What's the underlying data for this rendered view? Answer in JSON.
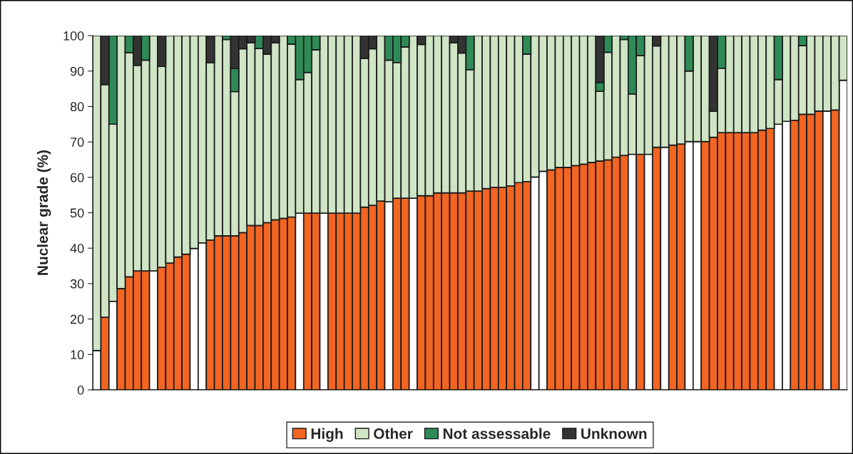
{
  "chart_data": {
    "type": "bar",
    "stacked": true,
    "ylabel": "Nuclear grade (%)",
    "ylim": [
      0,
      100
    ],
    "yticks": [
      0,
      10,
      20,
      30,
      40,
      50,
      60,
      70,
      80,
      90,
      100
    ],
    "legend": "bottom",
    "categories": [
      null,
      null,
      null,
      null,
      null,
      null,
      null,
      null,
      null,
      null,
      null,
      null,
      null,
      null,
      null,
      null,
      null,
      null,
      null,
      null,
      null,
      null,
      null,
      null,
      null,
      null,
      null,
      null,
      null,
      null,
      null,
      null,
      null,
      null,
      null,
      null,
      null,
      null,
      null,
      null,
      null,
      null,
      null,
      null,
      null,
      null,
      null,
      null,
      null,
      null,
      null,
      null,
      null,
      null,
      null,
      null,
      null,
      null,
      null,
      null,
      null,
      null,
      null,
      null,
      null,
      null,
      null,
      null,
      null,
      null,
      null,
      null,
      null,
      null,
      null,
      null,
      null,
      null,
      null,
      null,
      null,
      null,
      null,
      null,
      null,
      null,
      null,
      null,
      null,
      null,
      null,
      null,
      null
    ],
    "series": [
      {
        "name": "High",
        "color": "#f26522",
        "values": [
          11.1,
          20.5,
          25.0,
          28.6,
          31.9,
          33.6,
          33.6,
          33.6,
          34.6,
          35.8,
          37.5,
          38.3,
          39.9,
          41.5,
          42.3,
          43.5,
          43.5,
          43.5,
          44.4,
          46.4,
          46.4,
          47.2,
          48.0,
          48.4,
          48.8,
          49.9,
          49.9,
          49.9,
          49.9,
          49.9,
          49.9,
          49.9,
          49.9,
          51.6,
          52.1,
          53.3,
          53.1,
          54.1,
          54.1,
          54.1,
          54.8,
          54.8,
          55.6,
          55.6,
          55.6,
          55.6,
          56.1,
          56.1,
          56.8,
          57.2,
          57.2,
          57.6,
          58.5,
          58.8,
          60.1,
          61.7,
          62.1,
          62.8,
          62.8,
          63.3,
          63.7,
          64.2,
          64.6,
          64.9,
          65.7,
          66.2,
          66.5,
          66.5,
          66.5,
          68.5,
          68.5,
          69.1,
          69.4,
          70.1,
          70.1,
          70.1,
          71.3,
          72.6,
          72.6,
          72.6,
          72.6,
          72.6,
          73.3,
          73.8,
          75.0,
          75.8,
          76.1,
          77.8,
          77.8,
          78.7,
          78.7,
          79.0,
          87.4
        ],
        "colors": [
          "#ffffff",
          "#f26522",
          "#ffffff",
          "#f26522",
          "#f26522",
          "#f26522",
          "#f26522",
          "#ffffff",
          "#f26522",
          "#f26522",
          "#f26522",
          "#f26522",
          "#ffffff",
          "#ffffff",
          "#f26522",
          "#f26522",
          "#f26522",
          "#f26522",
          "#f26522",
          "#f26522",
          "#f26522",
          "#f26522",
          "#f26522",
          "#f26522",
          "#f26522",
          "#ffffff",
          "#f26522",
          "#f26522",
          "#ffffff",
          "#f26522",
          "#f26522",
          "#f26522",
          "#f26522",
          "#f26522",
          "#f26522",
          "#f26522",
          "#ffffff",
          "#f26522",
          "#f26522",
          "#ffffff",
          "#f26522",
          "#f26522",
          "#f26522",
          "#f26522",
          "#f26522",
          "#f26522",
          "#f26522",
          "#f26522",
          "#f26522",
          "#f26522",
          "#f26522",
          "#f26522",
          "#f26522",
          "#f26522",
          "#ffffff",
          "#ffffff",
          "#f26522",
          "#f26522",
          "#f26522",
          "#f26522",
          "#f26522",
          "#f26522",
          "#f26522",
          "#f26522",
          "#f26522",
          "#f26522",
          "#ffffff",
          "#f26522",
          "#ffffff",
          "#f26522",
          "#ffffff",
          "#f26522",
          "#f26522",
          "#ffffff",
          "#ffffff",
          "#f26522",
          "#f26522",
          "#f26522",
          "#f26522",
          "#f26522",
          "#f26522",
          "#f26522",
          "#f26522",
          "#f26522",
          "#ffffff",
          "#ffffff",
          "#f26522",
          "#f26522",
          "#f26522",
          "#f26522",
          "#ffffff",
          "#f26522",
          "#ffffff"
        ]
      },
      {
        "name": "Other",
        "color": "#cfe5c6",
        "values": [
          88.9,
          65.7,
          50.0,
          71.4,
          63.3,
          58.0,
          59.5,
          66.4,
          56.7,
          64.2,
          62.5,
          61.7,
          60.1,
          58.5,
          50.0,
          56.5,
          55.4,
          40.7,
          51.9,
          51.6,
          50.0,
          47.6,
          50.0,
          51.6,
          48.8,
          37.7,
          39.7,
          46.1,
          50.1,
          50.1,
          50.1,
          50.1,
          50.1,
          42.0,
          44.2,
          46.7,
          40.0,
          38.3,
          42.7,
          45.9,
          42.7,
          45.2,
          44.4,
          44.4,
          42.4,
          39.5,
          34.3,
          43.9,
          43.2,
          42.8,
          42.8,
          42.4,
          41.5,
          36.0,
          39.9,
          38.3,
          37.9,
          37.2,
          37.2,
          36.7,
          36.3,
          35.8,
          19.7,
          30.4,
          34.3,
          32.7,
          17.0,
          27.9,
          33.5,
          28.6,
          31.5,
          30.9,
          30.6,
          19.9,
          29.9,
          29.9,
          7.4,
          18.2,
          27.4,
          27.4,
          27.4,
          27.4,
          26.7,
          26.2,
          12.6,
          24.2,
          23.9,
          19.4,
          22.2,
          21.3,
          21.3,
          21.0,
          12.6
        ]
      },
      {
        "name": "Not assessable",
        "color": "#2e8b57",
        "values": [
          null,
          null,
          25.0,
          null,
          4.8,
          null,
          6.9,
          null,
          null,
          null,
          null,
          null,
          null,
          null,
          null,
          null,
          1.1,
          6.5,
          null,
          null,
          3.6,
          null,
          null,
          null,
          2.4,
          12.4,
          10.4,
          4.0,
          null,
          null,
          null,
          null,
          null,
          null,
          null,
          null,
          6.9,
          7.6,
          3.2,
          null,
          null,
          null,
          null,
          null,
          null,
          null,
          9.6,
          null,
          null,
          null,
          null,
          null,
          null,
          5.2,
          null,
          null,
          null,
          null,
          null,
          null,
          null,
          null,
          2.5,
          4.7,
          null,
          1.1,
          16.5,
          5.6,
          null,
          null,
          null,
          null,
          null,
          10.0,
          null,
          null,
          null,
          9.2,
          null,
          null,
          null,
          null,
          null,
          null,
          12.4,
          null,
          null,
          2.8,
          null,
          null,
          null,
          null,
          null
        ]
      },
      {
        "name": "Unknown",
        "color": "#333333",
        "values": [
          null,
          13.8,
          null,
          null,
          null,
          8.4,
          null,
          null,
          8.7,
          null,
          null,
          null,
          null,
          null,
          7.7,
          null,
          null,
          9.3,
          3.7,
          2.0,
          null,
          5.2,
          2.0,
          null,
          null,
          null,
          null,
          null,
          null,
          null,
          null,
          null,
          null,
          6.4,
          3.7,
          null,
          null,
          null,
          null,
          null,
          2.5,
          null,
          null,
          null,
          2.0,
          4.9,
          null,
          null,
          null,
          null,
          null,
          null,
          null,
          null,
          null,
          null,
          null,
          null,
          null,
          null,
          null,
          null,
          13.2,
          null,
          null,
          null,
          null,
          null,
          null,
          2.9,
          null,
          null,
          null,
          null,
          null,
          null,
          21.3,
          null,
          null,
          null,
          null,
          null,
          null,
          null,
          null,
          null,
          null,
          null,
          null,
          null,
          null,
          null,
          null
        ]
      }
    ]
  }
}
